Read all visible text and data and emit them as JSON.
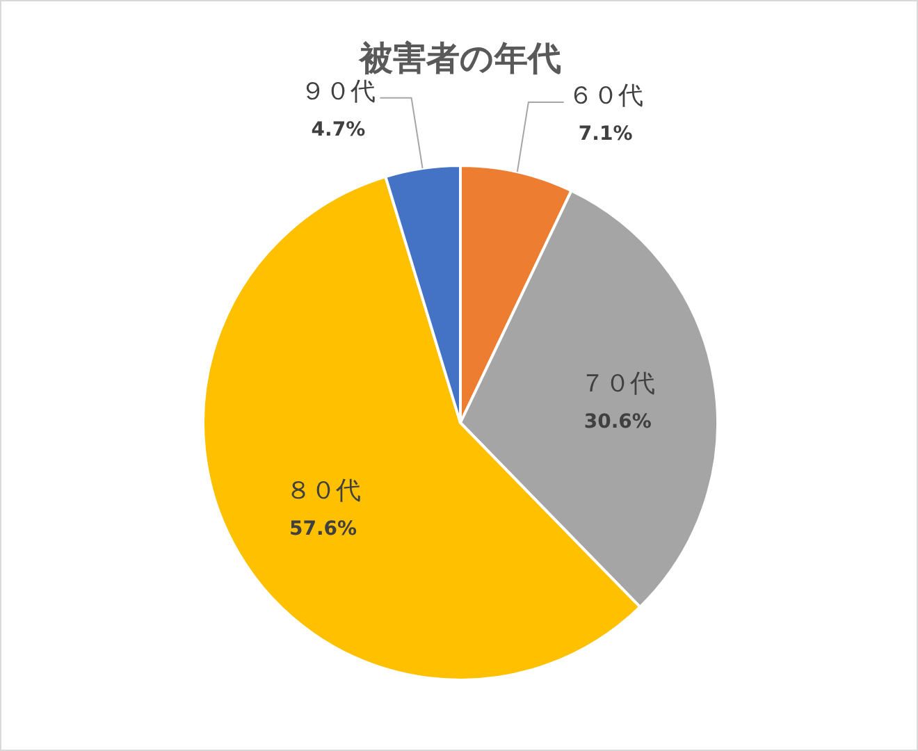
{
  "chart_data": {
    "type": "pie",
    "title": "被害者の年代",
    "categories": [
      "６０代",
      "７０代",
      "８０代",
      "９０代"
    ],
    "values": [
      7.1,
      30.6,
      57.6,
      4.7
    ],
    "colors": [
      "#ed7d31",
      "#a5a5a5",
      "#ffc000",
      "#4472c4"
    ],
    "value_labels": [
      "7.1%",
      "30.6%",
      "57.6%",
      "4.7%"
    ],
    "legend": false
  }
}
